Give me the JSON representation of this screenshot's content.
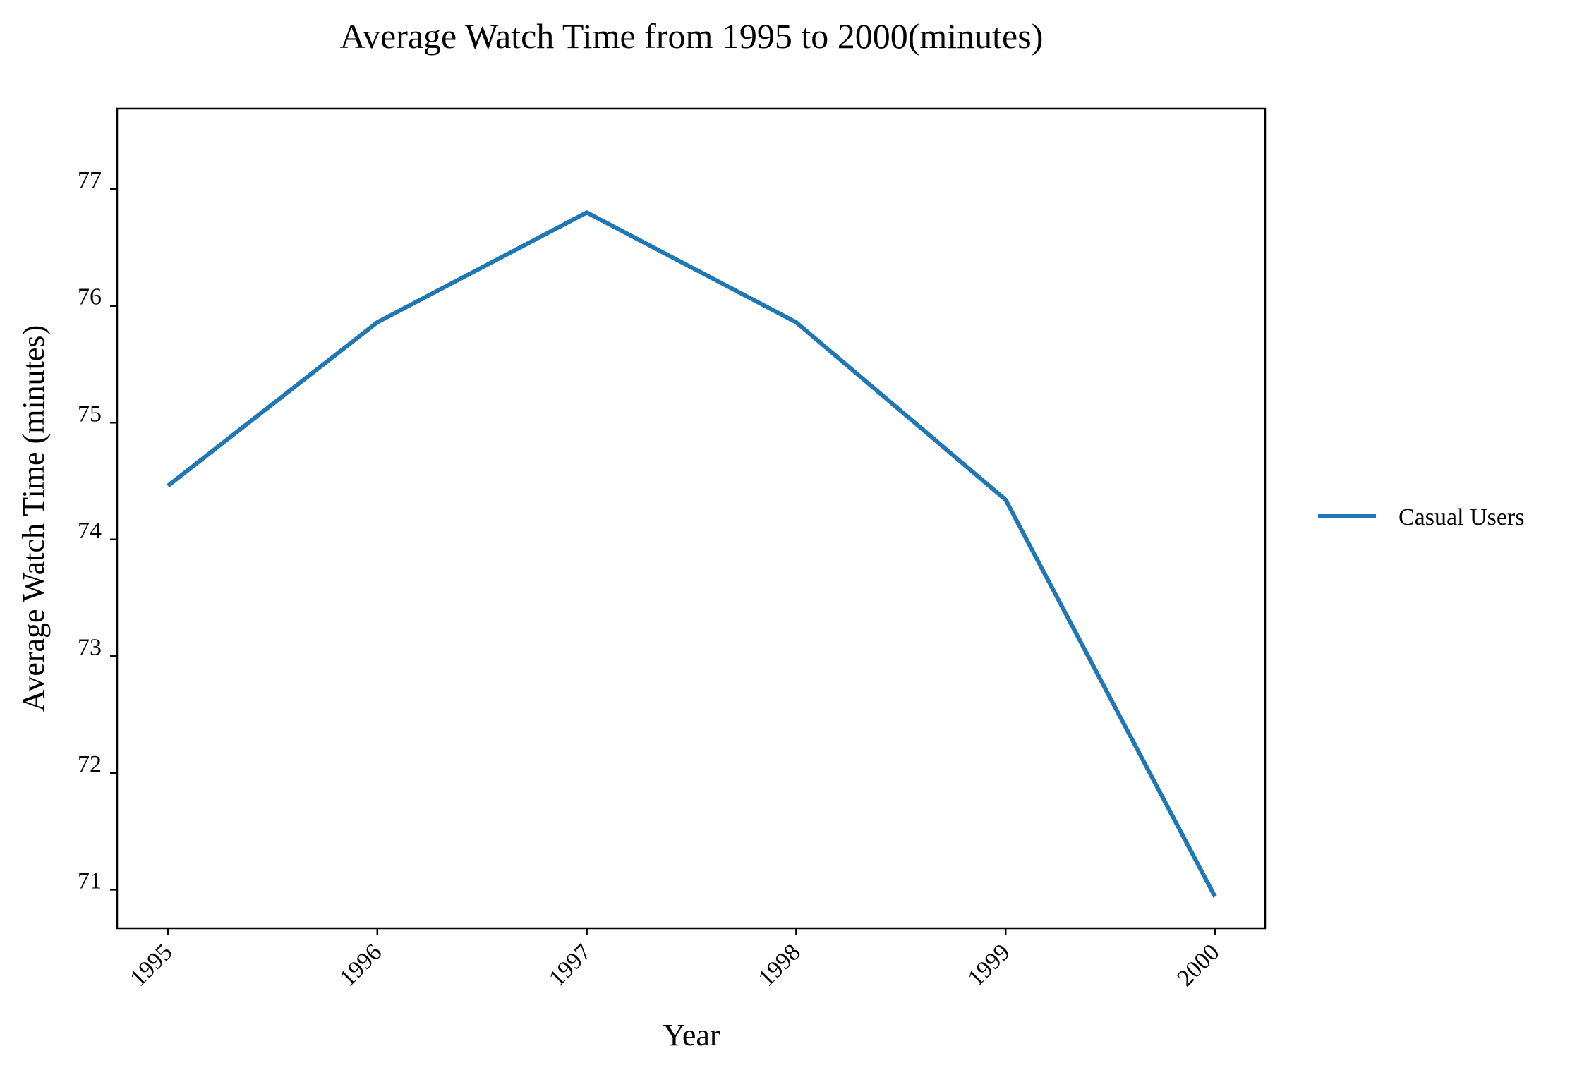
{
  "chart_data": {
    "type": "line",
    "title": "Average Watch Time from 1995 to 2000(minutes)",
    "xlabel": "Year",
    "ylabel": "Average Watch Time (minutes)",
    "x": [
      "1995",
      "1996",
      "1997",
      "1998",
      "1999",
      "2000"
    ],
    "x_tick_labels": [
      "1995",
      "1996",
      "1997",
      "1998",
      "1999",
      "2000"
    ],
    "y_ticks": [
      71,
      72,
      73,
      74,
      75,
      76,
      77
    ],
    "y_tick_labels": [
      "71",
      "72",
      "73",
      "74",
      "75",
      "76",
      "77"
    ],
    "ylim": [
      70.67,
      77.69
    ],
    "grid": false,
    "legend_position": "right",
    "series": [
      {
        "name": "Casual Users",
        "color": "#1f77b4",
        "values": [
          74.46,
          75.86,
          76.8,
          75.86,
          74.34,
          70.94
        ]
      }
    ]
  }
}
